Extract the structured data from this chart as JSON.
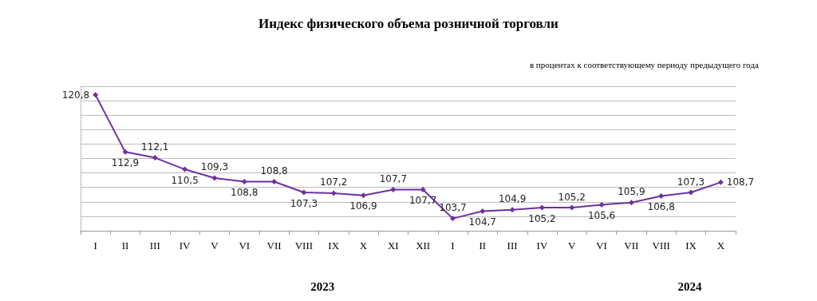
{
  "chart_data": {
    "type": "line",
    "title": "Индекс физического объема розничной торговли",
    "subtitle": "в процентах к соответствующему периоду предыдущего года",
    "categories": [
      "I",
      "II",
      "III",
      "IV",
      "V",
      "VI",
      "VII",
      "VIII",
      "IX",
      "X",
      "XI",
      "XII",
      "I",
      "II",
      "III",
      "IV",
      "V",
      "VI",
      "VII",
      "VIII",
      "IX",
      "X"
    ],
    "series": [
      {
        "color": "#7030a0",
        "values": [
          120.8,
          112.9,
          112.1,
          110.5,
          109.3,
          108.8,
          108.8,
          107.3,
          107.2,
          106.9,
          107.7,
          107.7,
          103.7,
          104.7,
          104.9,
          105.2,
          105.2,
          105.6,
          105.9,
          106.8,
          107.3,
          108.7
        ],
        "value_labels": [
          "120,8",
          "112,9",
          "112,1",
          "110,5",
          "109,3",
          "108,8",
          "108,8",
          "107,3",
          "107,2",
          "106,9",
          "107,7",
          "107,7",
          "103,7",
          "104,7",
          "104,9",
          "105,2",
          "105,2",
          "105,6",
          "105,9",
          "106,8",
          "107,3",
          "108,7"
        ]
      }
    ],
    "tick_labels": "x",
    "grid": "y",
    "marker": "diamond",
    "line_style": "solid",
    "annotations": [
      "2023",
      "2024"
    ]
  }
}
